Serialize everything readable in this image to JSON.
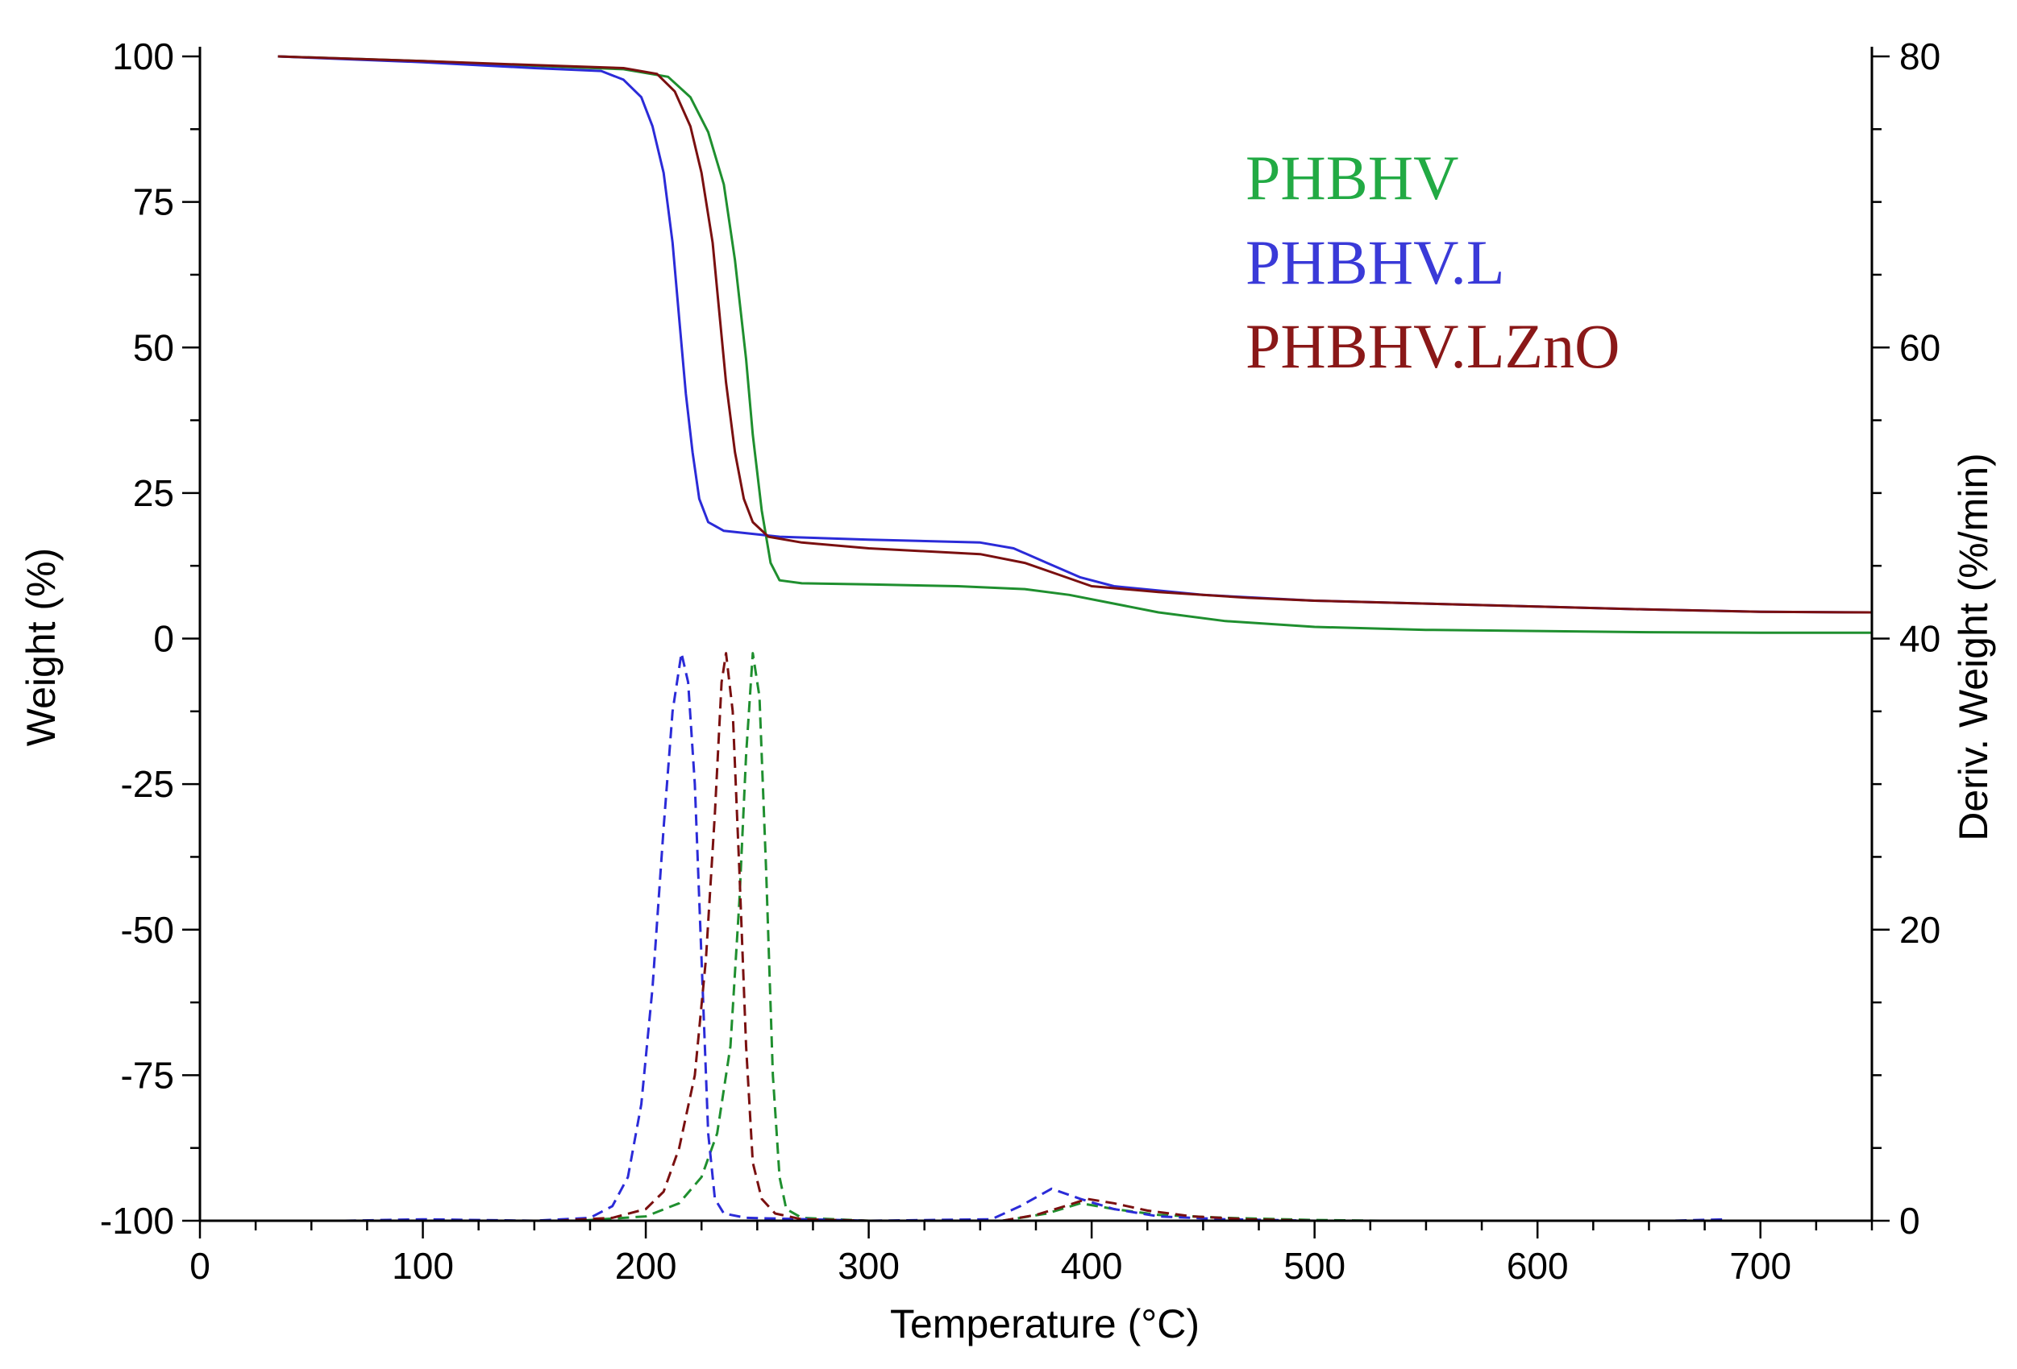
{
  "chart_data": {
    "type": "line",
    "xlabel": "Temperature (°C)",
    "ylabel": "Weight (%)",
    "y2label": "Deriv. Weight (%/min)",
    "xlim": [
      0,
      750
    ],
    "ylim": [
      -100,
      100
    ],
    "y2lim": [
      0,
      80
    ],
    "x_ticks": [
      "0",
      "100",
      "200",
      "300",
      "400",
      "500",
      "600",
      "700"
    ],
    "y_ticks": [
      "100",
      "75",
      "50",
      "25",
      "0",
      "-25",
      "-50",
      "-75",
      "-100"
    ],
    "y2_ticks": [
      "80",
      "60",
      "40",
      "20",
      "0"
    ],
    "legend": {
      "position": "top-right",
      "entries": [
        "PHBHV",
        "PHBHV.L",
        "PHBHV.LZnO"
      ]
    },
    "colors": {
      "PHBHV": "#1f8f2f",
      "PHBHV.L": "#2b2bd8",
      "PHBHV.LZnO": "#7a1010",
      "legend_PHBHV": "#22aa44",
      "legend_PHBHV.L": "#3a3ad8",
      "legend_PHBHV.LZnO": "#8a1818"
    },
    "series": [
      {
        "name": "PHBHV",
        "kind": "weight",
        "axis": "left",
        "points": [
          [
            35,
            100
          ],
          [
            100,
            99.2
          ],
          [
            150,
            98.4
          ],
          [
            190,
            97.8
          ],
          [
            210,
            96.5
          ],
          [
            220,
            93
          ],
          [
            228,
            87
          ],
          [
            235,
            78
          ],
          [
            240,
            65
          ],
          [
            245,
            48
          ],
          [
            248,
            35
          ],
          [
            252,
            22
          ],
          [
            256,
            13
          ],
          [
            260,
            10
          ],
          [
            270,
            9.5
          ],
          [
            300,
            9.3
          ],
          [
            340,
            9
          ],
          [
            370,
            8.5
          ],
          [
            390,
            7.5
          ],
          [
            410,
            6
          ],
          [
            430,
            4.5
          ],
          [
            460,
            3
          ],
          [
            500,
            2
          ],
          [
            550,
            1.5
          ],
          [
            600,
            1.3
          ],
          [
            650,
            1.1
          ],
          [
            700,
            1
          ],
          [
            750,
            1
          ]
        ]
      },
      {
        "name": "PHBHV.L",
        "kind": "weight",
        "axis": "left",
        "points": [
          [
            35,
            100
          ],
          [
            100,
            99
          ],
          [
            150,
            98
          ],
          [
            180,
            97.5
          ],
          [
            190,
            96
          ],
          [
            198,
            93
          ],
          [
            203,
            88
          ],
          [
            208,
            80
          ],
          [
            212,
            68
          ],
          [
            215,
            55
          ],
          [
            218,
            42
          ],
          [
            221,
            32
          ],
          [
            224,
            24
          ],
          [
            228,
            20
          ],
          [
            235,
            18.5
          ],
          [
            260,
            17.5
          ],
          [
            300,
            17
          ],
          [
            350,
            16.5
          ],
          [
            365,
            15.5
          ],
          [
            380,
            13
          ],
          [
            395,
            10.5
          ],
          [
            410,
            9
          ],
          [
            450,
            7.5
          ],
          [
            500,
            6.5
          ],
          [
            550,
            6
          ],
          [
            600,
            5.5
          ],
          [
            650,
            5
          ],
          [
            700,
            4.6
          ],
          [
            750,
            4.5
          ]
        ]
      },
      {
        "name": "PHBHV.LZnO",
        "kind": "weight",
        "axis": "left",
        "points": [
          [
            35,
            100
          ],
          [
            100,
            99.2
          ],
          [
            150,
            98.5
          ],
          [
            190,
            98
          ],
          [
            205,
            97
          ],
          [
            213,
            94
          ],
          [
            220,
            88
          ],
          [
            225,
            80
          ],
          [
            230,
            68
          ],
          [
            233,
            56
          ],
          [
            236,
            44
          ],
          [
            240,
            32
          ],
          [
            244,
            24
          ],
          [
            248,
            20
          ],
          [
            255,
            17.5
          ],
          [
            270,
            16.5
          ],
          [
            300,
            15.5
          ],
          [
            350,
            14.5
          ],
          [
            370,
            13
          ],
          [
            385,
            11
          ],
          [
            400,
            9
          ],
          [
            430,
            8
          ],
          [
            470,
            7
          ],
          [
            500,
            6.5
          ],
          [
            550,
            6
          ],
          [
            600,
            5.5
          ],
          [
            650,
            5
          ],
          [
            700,
            4.6
          ],
          [
            750,
            4.5
          ]
        ]
      },
      {
        "name": "PHBHV",
        "kind": "derivative",
        "axis": "right",
        "points": [
          [
            100,
            0
          ],
          [
            170,
            0
          ],
          [
            200,
            0.3
          ],
          [
            215,
            1.2
          ],
          [
            225,
            3
          ],
          [
            232,
            6
          ],
          [
            238,
            12
          ],
          [
            242,
            22
          ],
          [
            245,
            32
          ],
          [
            248,
            39
          ],
          [
            251,
            36
          ],
          [
            254,
            24
          ],
          [
            257,
            10
          ],
          [
            260,
            3
          ],
          [
            263,
            0.8
          ],
          [
            270,
            0.2
          ],
          [
            300,
            0
          ],
          [
            360,
            0
          ],
          [
            380,
            0.5
          ],
          [
            395,
            1.2
          ],
          [
            410,
            0.8
          ],
          [
            430,
            0.4
          ],
          [
            460,
            0.2
          ],
          [
            500,
            0.05
          ],
          [
            530,
            0
          ]
        ]
      },
      {
        "name": "PHBHV.L",
        "kind": "derivative",
        "axis": "right",
        "points": [
          [
            65,
            0
          ],
          [
            100,
            0.1
          ],
          [
            150,
            0
          ],
          [
            175,
            0.2
          ],
          [
            185,
            1
          ],
          [
            192,
            3
          ],
          [
            198,
            8
          ],
          [
            203,
            16
          ],
          [
            208,
            27
          ],
          [
            212,
            35
          ],
          [
            216,
            39
          ],
          [
            219,
            37
          ],
          [
            222,
            30
          ],
          [
            225,
            18
          ],
          [
            228,
            6
          ],
          [
            231,
            1.5
          ],
          [
            235,
            0.5
          ],
          [
            245,
            0.2
          ],
          [
            300,
            0
          ],
          [
            355,
            0.1
          ],
          [
            368,
            1
          ],
          [
            382,
            2.2
          ],
          [
            395,
            1.5
          ],
          [
            410,
            0.8
          ],
          [
            430,
            0.3
          ],
          [
            460,
            0.1
          ],
          [
            500,
            0
          ],
          [
            660,
            0
          ],
          [
            685,
            0.1
          ]
        ]
      },
      {
        "name": "PHBHV.LZnO",
        "kind": "derivative",
        "axis": "right",
        "points": [
          [
            65,
            0
          ],
          [
            100,
            0
          ],
          [
            160,
            0
          ],
          [
            185,
            0.2
          ],
          [
            200,
            0.8
          ],
          [
            208,
            2
          ],
          [
            215,
            5
          ],
          [
            222,
            10
          ],
          [
            227,
            18
          ],
          [
            231,
            28
          ],
          [
            234,
            37
          ],
          [
            236,
            39
          ],
          [
            239,
            35
          ],
          [
            242,
            24
          ],
          [
            245,
            12
          ],
          [
            248,
            4
          ],
          [
            252,
            1.5
          ],
          [
            258,
            0.5
          ],
          [
            270,
            0.1
          ],
          [
            300,
            0
          ],
          [
            360,
            0
          ],
          [
            375,
            0.4
          ],
          [
            388,
            1
          ],
          [
            398,
            1.5
          ],
          [
            410,
            1.2
          ],
          [
            425,
            0.7
          ],
          [
            445,
            0.3
          ],
          [
            470,
            0.1
          ],
          [
            500,
            0
          ]
        ]
      }
    ]
  }
}
